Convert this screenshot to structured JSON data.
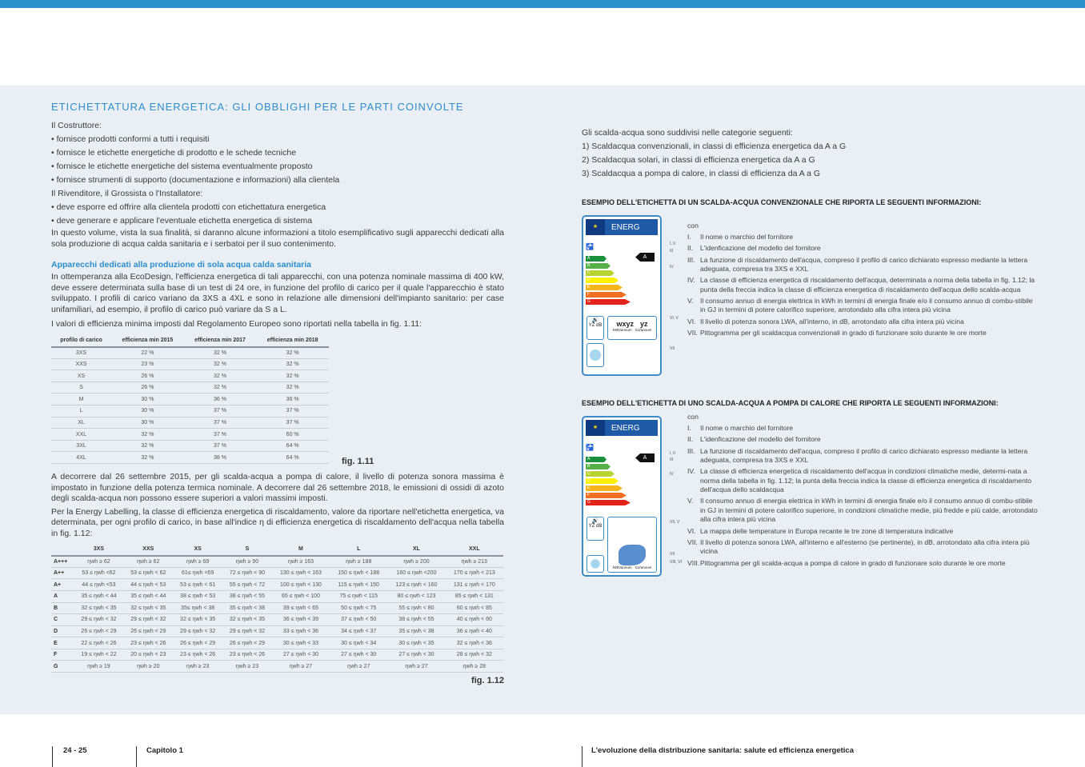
{
  "title": "ETICHETTATURA ENERGETICA: GLI OBBLIGHI PER LE PARTI COINVOLTE",
  "left": {
    "costruttore": "Il Costruttore:",
    "costruttore_items": [
      "fornisce prodotti conformi a tutti i requisiti",
      "fornisce le etichette energetiche di prodotto e le schede tecniche",
      "fornisce le etichette energetiche del sistema eventualmente proposto",
      "fornisce strumenti di supporto (documentazione e informazioni) alla clientela"
    ],
    "rivenditore": "Il Rivenditore, il Grossista o l'Installatore:",
    "rivenditore_items": [
      "deve esporre ed offrire alla clientela prodotti con etichettatura energetica",
      "deve generare e applicare l'eventuale etichetta energetica di sistema"
    ],
    "intro": "In questo volume, vista la sua finalità, si daranno alcune informazioni a titolo esemplificativo sugli apparecchi dedicati alla sola produzione di acqua calda sanitaria e i serbatoi per il suo contenimento.",
    "subtitle": "Apparecchi dedicati alla produzione di sola acqua calda sanitaria",
    "p1": "In ottemperanza alla EcoDesign, l'efficienza energetica di tali apparecchi, con una potenza nominale massima di 400 kW, deve essere determinata sulla base di un test di 24 ore, in funzione del profilo di carico per il quale l'apparecchio è stato sviluppato. I profili di carico variano da 3XS a 4XL e sono in relazione alle dimensioni dell'impianto sanitario: per case unifamiliari, ad esempio, il profilo di carico può variare da S a L.",
    "p2": "I valori di efficienza minima imposti dal Regolamento Europeo sono riportati nella tabella in fig. 1.11:",
    "p3": "A decorrere dal 26 settembre 2015, per gli scalda-acqua a pompa di calore, il livello di potenza sonora massima è impostato in funzione della potenza termica nominale. A decorrere dal 26 settembre 2018, le emissioni di ossidi di azoto degli scalda-acqua non possono essere superiori a valori massimi imposti.",
    "p4": "Per la Energy Labelling, la classe di efficienza energetica di riscaldamento, valore da riportare nell'etichetta energetica, va determinata, per ogni profilo di carico, in base all'indice η di efficienza energetica di riscaldamento dell'acqua nella tabella in fig. 1.12:"
  },
  "fig111": {
    "caption": "fig. 1.11",
    "headers": [
      "profilo di carico",
      "efficienza min 2015",
      "efficienza min 2017",
      "efficienza min 2018"
    ],
    "rows": [
      [
        "3XS",
        "22 %",
        "32 %",
        "32 %"
      ],
      [
        "XXS",
        "23 %",
        "32 %",
        "32 %"
      ],
      [
        "XS",
        "26 %",
        "32 %",
        "32 %"
      ],
      [
        "S",
        "26 %",
        "32 %",
        "32 %"
      ],
      [
        "M",
        "30 %",
        "36 %",
        "36 %"
      ],
      [
        "L",
        "30 %",
        "37 %",
        "37 %"
      ],
      [
        "XL",
        "30 %",
        "37 %",
        "37 %"
      ],
      [
        "XXL",
        "32 %",
        "37 %",
        "60 %"
      ],
      [
        "3XL",
        "32 %",
        "37 %",
        "64 %"
      ],
      [
        "4XL",
        "32 %",
        "38 %",
        "64 %"
      ]
    ]
  },
  "fig112": {
    "caption": "fig. 1.12",
    "headers": [
      "",
      "3XS",
      "XXS",
      "XS",
      "S",
      "M",
      "L",
      "XL",
      "XXL"
    ],
    "rows": [
      [
        "A+++",
        "ηwh ≥ 62",
        "ηwh ≥ 62",
        "ηwh ≥ 69",
        "ηwh ≥ 90",
        "ηwh ≥ 163",
        "ηwh ≥ 188",
        "ηwh ≥ 200",
        "ηwh ≥ 213"
      ],
      [
        "A++",
        "53 ≤ ηwh <62",
        "53 ≤ ηwh < 62",
        "61≤ ηwh <69",
        "72 ≤ ηwh < 90",
        "130 ≤ ηwh < 163",
        "150 ≤ ηwh < 188",
        "160 ≤ ηwh <200",
        "170 ≤ ηwh < 213"
      ],
      [
        "A+",
        "44 ≤ ηwh <53",
        "44 ≤ ηwh < 53",
        "53 ≤ ηwh < 61",
        "55 ≤ ηwh < 72",
        "100 ≤ ηwh < 130",
        "115 ≤ ηwh < 150",
        "123 ≤ ηwh < 160",
        "131 ≤ ηwh < 170"
      ],
      [
        "A",
        "35 ≤ ηwh < 44",
        "35 ≤ ηwh < 44",
        "38 ≤ ηwh < 53",
        "38 ≤ ηwh < 55",
        "65 ≤ ηwh < 100",
        "75 ≤ ηwh < 115",
        "80 ≤ ηwh < 123",
        "85 ≤ ηwh < 131"
      ],
      [
        "B",
        "32 ≤ ηwh < 35",
        "32 ≤ ηwh < 35",
        "35≤ ηwh < 38",
        "35 ≤ ηwh < 38",
        "39 ≤ ηwh < 65",
        "50 ≤ ηwh < 75",
        "55 ≤ ηwh < 80",
        "60 ≤ ηwh < 85"
      ],
      [
        "C",
        "29 ≤ ηwh < 32",
        "29 ≤ ηwh < 32",
        "32 ≤ ηwh < 35",
        "32 ≤ ηwh < 35",
        "36 ≤ ηwh < 39",
        "37 ≤ ηwh < 50",
        "38 ≤ ηwh < 55",
        "40 ≤ ηwh < 60"
      ],
      [
        "D",
        "26 ≤ ηwh < 29",
        "26 ≤ ηwh < 29",
        "29 ≤ ηwh < 32",
        "29 ≤ ηwh < 32",
        "33 ≤ ηwh < 36",
        "34 ≤ ηwh < 37",
        "35 ≤ ηwh < 38",
        "36 ≤ ηwh < 40"
      ],
      [
        "E",
        "22 ≤ ηwh < 26",
        "23 ≤ ηwh < 26",
        "26 ≤ ηwh < 29",
        "26 ≤ ηwh < 29",
        "30 ≤ ηwh < 33",
        "30 ≤ ηwh < 34",
        "30 ≤ ηwh < 35",
        "32 ≤ ηwh < 36"
      ],
      [
        "F",
        "19 ≤ ηwh < 22",
        "20 ≤ ηwh < 23",
        "23 ≤ ηwh < 26",
        "23 ≤ ηwh < 26",
        "27 ≤ ηwh < 30",
        "27 ≤ ηwh < 30",
        "27 ≤ ηwh < 30",
        "28 ≤ ηwh < 32"
      ],
      [
        "G",
        "ηwh ≥ 19",
        "ηwh ≥ 20",
        "ηwh ≥ 23",
        "ηwh ≥ 23",
        "ηwh ≥ 27",
        "ηwh ≥ 27",
        "ηwh ≥ 27",
        "ηwh ≥ 28"
      ]
    ]
  },
  "right": {
    "intro": "Gli scalda-acqua sono suddivisi nelle categorie seguenti:",
    "categories": [
      "1) Scaldacqua convenzionali, in classi di efficienza energetica da A a G",
      "2) Scaldacqua solari, in classi di efficienza energetica da A a G",
      "3) Scaldacqua a pompa di calore, in classi di efficienza da A a G"
    ],
    "ex1": {
      "heading": "ESEMPIO DELL'ETICHETTA DI UN SCALDA-ACQUA CONVENZIONALE CHE RIPORTA LE SEGUENTI INFORMAZIONI:",
      "con": "con",
      "items": [
        [
          "I.",
          "Il nome o marchio del fornitore"
        ],
        [
          "II.",
          "L'idenficazione del modello del fornitore"
        ],
        [
          "III.",
          "La funzione di riscaldamento dell'acqua, compreso il profilo di carico dichiarato espresso mediante la lettera adeguata, compresa tra 3XS e XXL"
        ],
        [
          "IV.",
          "La classe di efficienza energetica di riscaldamento dell'acqua, determinata a norma della tabella in fig. 1.12; la punta della freccia indica la classe di efficienza energetica di riscaldamento dell'acqua dello scalda-acqua"
        ],
        [
          "V.",
          "Il consumo annuo di energia elettrica in kWh in termini di energia finale e/o il consumo annuo di combu-stibile in GJ in termini di potere calorifico superiore, arrotondato alla cifra intera più vicina"
        ],
        [
          "VI.",
          "Il livello di potenza sonora LWA, all'interno, in dB, arrotondato alla cifra intera più vicina"
        ],
        [
          "VII.",
          "Pittogramma per gli scaldacqua convenzionali in grado di funzionare solo durante le ore morte"
        ]
      ],
      "margin": [
        "I, II",
        "III",
        "IV",
        "VI, V",
        "VII"
      ]
    },
    "ex2": {
      "heading": "ESEMPIO DELL'ETICHETTA DI UNO SCALDA-ACQUA A POMPA DI CALORE CHE RIPORTA LE SEGUENTI INFORMAZIONI:",
      "con": "con",
      "items": [
        [
          "I.",
          "Il nome o marchio del fornitore"
        ],
        [
          "II.",
          "L'idenficazione del modello del fornitore"
        ],
        [
          "III.",
          "La funzione di riscaldamento dell'acqua, compreso il profilo di carico dichiarato espresso mediante la lettera adeguata, compresa tra 3XS e XXL"
        ],
        [
          "IV.",
          "La classe di efficienza energetica di riscaldamento dell'acqua in condizioni climatiche medie, determi-nata a norma della tabella in fig. 1.12; la punta della freccia indica la classe di efficienza energetica di riscaldamento dell'acqua dello scaldacqua"
        ],
        [
          "V.",
          "Il consumo annuo di energia elettrica in kWh in termini di energia finale e/o il consumo annuo di combu-stibile in GJ in termini di potere calorifico superiore, in condizioni climatiche medie, più fredde e più calde, arrotondato alla cifra intera più vicina"
        ],
        [
          "VI.",
          "La mappa delle temperature in Europa recante le tre zone di temperatura indicative"
        ],
        [
          "VII.",
          "Il livello di potenza sonora LWA, all'interno e all'esterno (se pertinente), in dB, arrotondato alla cifra intera più vicina"
        ],
        [
          "VIII.",
          "Pittogramma per gli scalda-acqua a pompa di calore in grado di funzionare solo durante le ore morte"
        ]
      ],
      "margin": [
        "I, II",
        "III",
        "IV",
        "VII, V",
        "VII",
        "VIII, VI"
      ]
    },
    "label": {
      "energ": "ENERG",
      "classes": [
        "A",
        "B",
        "C",
        "D",
        "E",
        "F",
        "G"
      ],
      "arrow": "A",
      "wxyz": "wxyz",
      "yz": "yz",
      "kwh": "kWh/annum",
      "gj": "GJ/annum",
      "db": "YZ dB",
      "colors": [
        "#1a8f3c",
        "#55b047",
        "#b8d433",
        "#fff200",
        "#f7b51c",
        "#ee6f22",
        "#e2231a"
      ]
    }
  },
  "footer": {
    "pages": "24 - 25",
    "chapter": "Capitolo 1",
    "book": "L'evoluzione della distribuzione sanitaria: salute ed efficienza energetica"
  }
}
